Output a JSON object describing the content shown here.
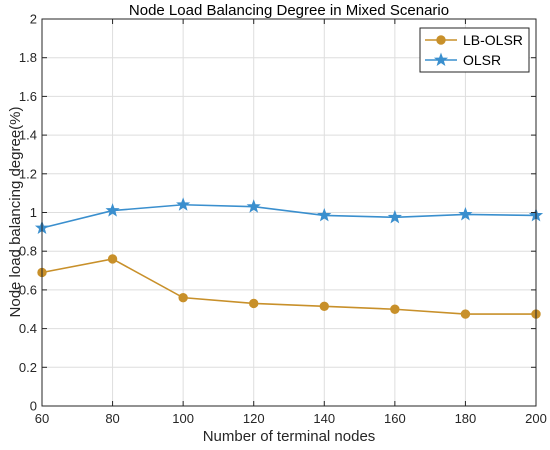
{
  "chart_data": {
    "type": "line",
    "title": "Node Load Balancing Degree in Mixed Scenario",
    "xlabel": "Number of terminal nodes",
    "ylabel": "Node load balancing degree(%)",
    "x": [
      60,
      80,
      100,
      120,
      140,
      160,
      180,
      200
    ],
    "xlim": [
      60,
      200
    ],
    "ylim": [
      0,
      2
    ],
    "xticks": [
      "60",
      "80",
      "100",
      "120",
      "140",
      "160",
      "180",
      "200"
    ],
    "yticks": [
      "0",
      "0.2",
      "0.4",
      "0.6",
      "0.8",
      "1",
      "1.2",
      "1.4",
      "1.6",
      "1.8",
      "2"
    ],
    "grid": true,
    "legend_position": "top-right",
    "series": [
      {
        "name": "LB-OLSR",
        "color": "#c8902a",
        "marker": "circle",
        "values": [
          0.69,
          0.76,
          0.56,
          0.53,
          0.515,
          0.5,
          0.475,
          0.475
        ]
      },
      {
        "name": "OLSR",
        "color": "#3a8fce",
        "marker": "star",
        "values": [
          0.92,
          1.01,
          1.04,
          1.03,
          0.985,
          0.975,
          0.99,
          0.985
        ]
      }
    ]
  }
}
